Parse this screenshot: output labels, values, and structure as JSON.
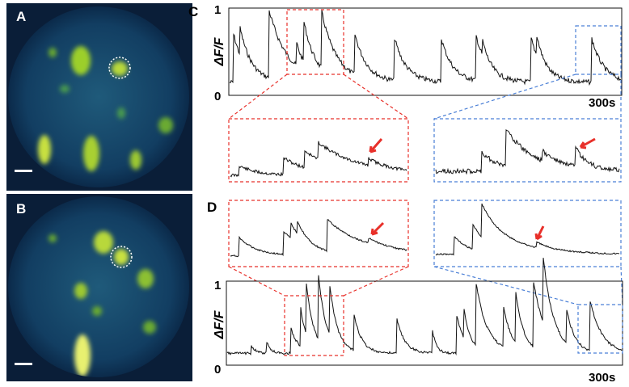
{
  "panels": {
    "A": {
      "label": "A"
    },
    "B": {
      "label": "B"
    },
    "C": {
      "label": "C",
      "y_label": "ΔF/F",
      "y_top": "1",
      "y_bottom": "0",
      "x_end": "300s"
    },
    "D": {
      "label": "D",
      "y_label": "ΔF/F",
      "y_top": "1",
      "y_bottom": "0",
      "x_end": "300s"
    }
  }
}
